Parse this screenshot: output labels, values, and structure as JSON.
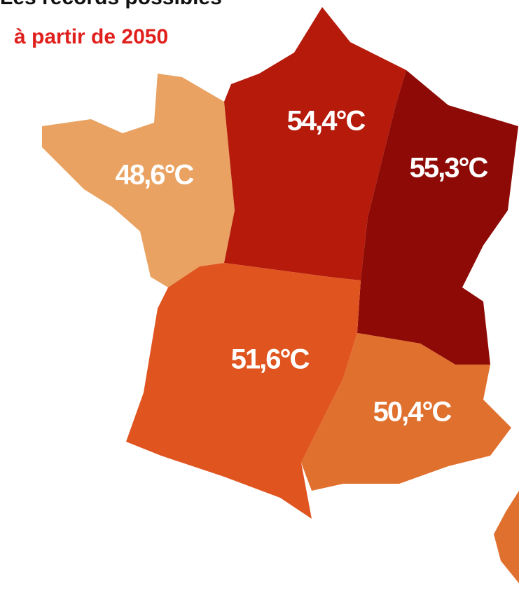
{
  "title": "Les records possibles",
  "subtitle": "à partir de 2050",
  "regions": [
    {
      "label": "48,6°C"
    },
    {
      "label": "54,4°C"
    },
    {
      "label": "55,3°C"
    },
    {
      "label": "51,6°C"
    },
    {
      "label": "50,4°C"
    }
  ]
}
